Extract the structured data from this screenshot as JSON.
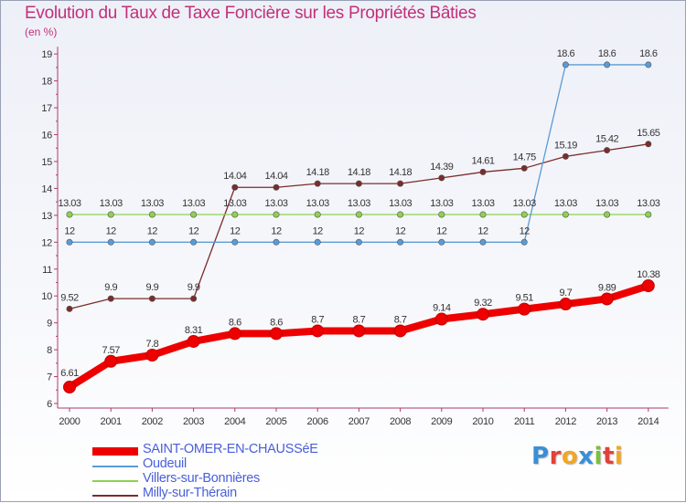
{
  "header": {
    "title": "Evolution du Taux de Taxe Foncière sur les Propriétés Bâties",
    "subtitle": "(en %)"
  },
  "colors": {
    "title": "#c2307a",
    "saint_omer": "#ee0000",
    "oudeuil": "#5b9bd5",
    "villers": "#8fd14f",
    "milly": "#7b2c2c"
  },
  "logo": {
    "text": "Proxiti"
  },
  "chart_data": {
    "type": "line",
    "title": "Evolution du Taux de Taxe Foncière sur les Propriétés Bâties",
    "ylabel": "(en %)",
    "x": [
      "2000",
      "2001",
      "2002",
      "2003",
      "2004",
      "2005",
      "2006",
      "2007",
      "2008",
      "2009",
      "2010",
      "2011",
      "2012",
      "2013",
      "2014"
    ],
    "ylim": [
      6,
      19
    ],
    "yticks": [
      "6",
      "7",
      "8",
      "9",
      "10",
      "11",
      "12",
      "13",
      "14",
      "15",
      "16",
      "17",
      "18",
      "19"
    ],
    "grid": false,
    "legend": "bottom-left",
    "series": [
      {
        "name": "SAINT-OMER-EN-CHAUSSéE",
        "color": "#ee0000",
        "values": [
          6.61,
          7.57,
          7.8,
          8.31,
          8.6,
          8.6,
          8.7,
          8.7,
          8.7,
          9.14,
          9.32,
          9.51,
          9.7,
          9.89,
          10.38
        ],
        "labels": [
          "6.61",
          "7.57",
          "7.8",
          "8.31",
          "8.6",
          "8.6",
          "8.7",
          "8.7",
          "8.7",
          "9.14",
          "9.32",
          "9.51",
          "9.7",
          "9.89",
          "10.38"
        ]
      },
      {
        "name": "Oudeuil",
        "color": "#5b9bd5",
        "values": [
          12,
          12,
          12,
          12,
          12,
          12,
          12,
          12,
          12,
          12,
          12,
          12,
          18.6,
          18.6,
          18.6
        ],
        "labels": [
          "12",
          "12",
          "12",
          "12",
          "12",
          "12",
          "12",
          "12",
          "12",
          "12",
          "12",
          "12",
          "18.6",
          "18.6",
          "18.6"
        ]
      },
      {
        "name": "Villers-sur-Bonnières",
        "color": "#8fd14f",
        "values": [
          13.03,
          13.03,
          13.03,
          13.03,
          13.03,
          13.03,
          13.03,
          13.03,
          13.03,
          13.03,
          13.03,
          13.03,
          13.03,
          13.03,
          13.03
        ],
        "labels": [
          "13.03",
          "13.03",
          "13.03",
          "13.03",
          "13.03",
          "13.03",
          "13.03",
          "13.03",
          "13.03",
          "13.03",
          "13.03",
          "13.03",
          "13.03",
          "13.03",
          "13.03"
        ]
      },
      {
        "name": "Milly-sur-Thérain",
        "color": "#7b2c2c",
        "values": [
          9.52,
          9.9,
          9.9,
          9.9,
          14.04,
          14.04,
          14.18,
          14.18,
          14.18,
          14.39,
          14.61,
          14.75,
          15.19,
          15.42,
          15.65
        ],
        "labels": [
          "9.52",
          "9.9",
          "9.9",
          "9.9",
          "14.04",
          "14.04",
          "14.18",
          "14.18",
          "14.18",
          "14.39",
          "14.61",
          "14.75",
          "15.19",
          "15.42",
          "15.65"
        ]
      }
    ]
  }
}
